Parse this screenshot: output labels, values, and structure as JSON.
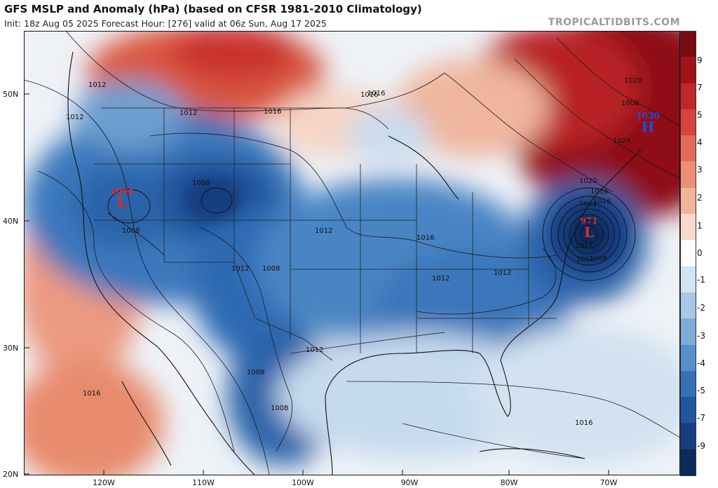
{
  "header": {
    "title": "GFS MSLP and Anomaly (hPa) (based on CFSR 1981-2010 Climatology)",
    "subtitle": "Init: 18z Aug 05 2025   Forecast Hour: [276]   valid at 06z Sun, Aug 17 2025",
    "brand": "TROPICALTIDBITS.COM"
  },
  "map": {
    "lat_labels": [
      "50N",
      "40N",
      "30N",
      "20N"
    ],
    "lon_labels": [
      "120W",
      "110W",
      "100W",
      "90W",
      "80W",
      "70W"
    ],
    "isobar_labels": [
      "1012",
      "1012",
      "1016",
      "1016",
      "1012",
      "1016",
      "1012",
      "1016",
      "1028",
      "1024",
      "1020",
      "1016",
      "1016",
      "1012",
      "1008",
      "1008",
      "1012",
      "1008",
      "1012",
      "1012",
      "1012",
      "1012",
      "1012",
      "1008",
      "1008",
      "1008",
      "1016",
      "1016",
      "1008"
    ],
    "pressure_systems": [
      {
        "type": "L",
        "value": "1004",
        "color": "#e2262b"
      },
      {
        "type": "L",
        "value": "971",
        "color": "#e2262b"
      },
      {
        "type": "H",
        "value": "1030",
        "color": "#1d4fd6"
      }
    ]
  },
  "colorbar": {
    "ticks": [
      "9",
      "7",
      "5",
      "4",
      "3",
      "2",
      "1",
      "0",
      "-1",
      "-2",
      "-3",
      "-4",
      "-5",
      "-7",
      "-9"
    ],
    "colors": [
      "#7a0a12",
      "#a01319",
      "#c0262a",
      "#d5443d",
      "#e36a55",
      "#ec8f75",
      "#f3b49c",
      "#f9d9c9",
      "#ffffff",
      "#d4e3f1",
      "#a9c8e6",
      "#7fadd9",
      "#5590ca",
      "#3571b6",
      "#21559f",
      "#173e80",
      "#0d2a5c"
    ]
  }
}
